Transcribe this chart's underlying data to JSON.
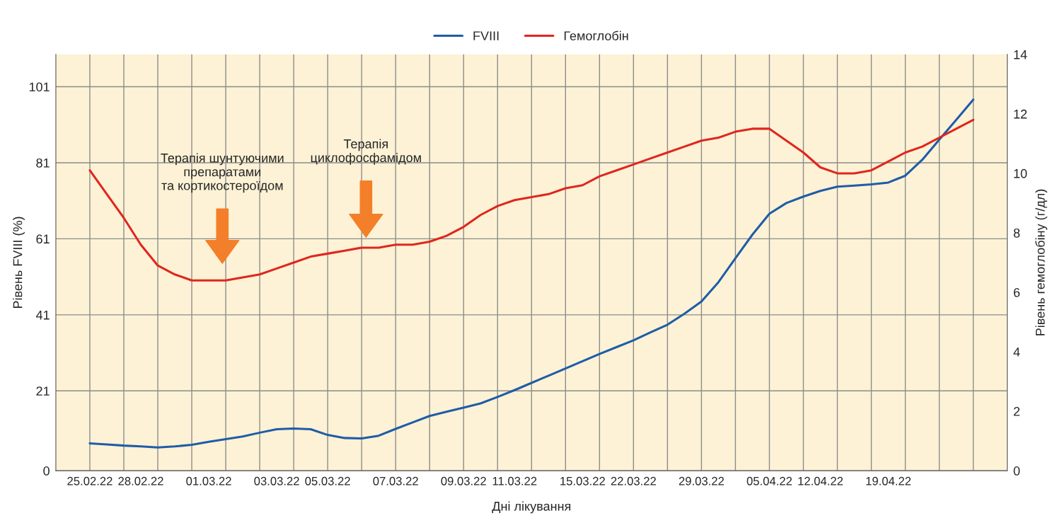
{
  "chart_data": {
    "type": "line",
    "xlabel": "Дні лікування",
    "ylabel": "Рівень FVIII (%)",
    "y2label": "Рівень гемоглобіну (г/дл)",
    "categories": [
      "25.02.22",
      null,
      null,
      "28.02.22",
      null,
      null,
      null,
      "01.03.22",
      null,
      null,
      null,
      "03.03.22",
      null,
      null,
      "05.03.22",
      null,
      null,
      null,
      "07.03.22",
      null,
      null,
      null,
      "09.03.22",
      null,
      null,
      "11.03.22",
      null,
      null,
      null,
      "15.03.22",
      null,
      null,
      "22.03.22",
      null,
      null,
      null,
      "29.03.22",
      null,
      null,
      null,
      "05.04.22",
      null,
      null,
      "12.04.22",
      null,
      null,
      null,
      "19.04.22",
      null,
      null,
      null,
      null,
      null
    ],
    "ylim": [
      0,
      109.5
    ],
    "yticks": [
      0,
      21,
      41,
      61,
      81,
      101
    ],
    "y2lim": [
      0,
      14
    ],
    "y2ticks": [
      0,
      2,
      4,
      6,
      8,
      10,
      12,
      14
    ],
    "grid": true,
    "legend": "top",
    "line_style": "solid",
    "marker": "none",
    "series": [
      {
        "name": "FVIII",
        "color": "#1f5ca8",
        "values": [
          7.2,
          6.9,
          6.6,
          6.4,
          6.1,
          6.4,
          6.8,
          7.6,
          8.3,
          9.0,
          10.0,
          10.9,
          11.1,
          10.9,
          9.4,
          8.6,
          8.5,
          9.2,
          11.0,
          12.7,
          14.4,
          15.5,
          16.6,
          17.7,
          19.4,
          21.2,
          23.1,
          25.0,
          26.9,
          28.8,
          30.7,
          32.5,
          34.3,
          36.4,
          38.4,
          41.3,
          44.5,
          49.6,
          55.9,
          62.1,
          67.6,
          70.4,
          72.1,
          73.6,
          74.7,
          75.0,
          75.3,
          75.8,
          77.6,
          81.8,
          87.1,
          92.3,
          97.6
        ]
      },
      {
        "name": "Гемоглобін",
        "color": "#e0261f",
        "axis": "y2",
        "values": [
          10.1,
          9.3,
          8.5,
          7.6,
          6.9,
          6.6,
          6.4,
          6.4,
          6.4,
          6.5,
          6.6,
          6.8,
          7.0,
          7.2,
          7.3,
          7.4,
          7.5,
          7.5,
          7.6,
          7.6,
          7.7,
          7.9,
          8.2,
          8.6,
          8.9,
          9.1,
          9.2,
          9.3,
          9.5,
          9.6,
          9.9,
          10.1,
          10.3,
          10.5,
          10.7,
          10.9,
          11.1,
          11.2,
          11.4,
          11.5,
          11.5,
          11.1,
          10.7,
          10.2,
          10.0,
          10.0,
          10.1,
          10.4,
          10.7,
          10.9,
          11.2,
          11.5,
          11.8
        ]
      }
    ],
    "annotations": [
      "Терапія шунтуючими\nпрепаратами\nта кортикостероїдом",
      "Терапія\nциклофосфамідом"
    ]
  }
}
